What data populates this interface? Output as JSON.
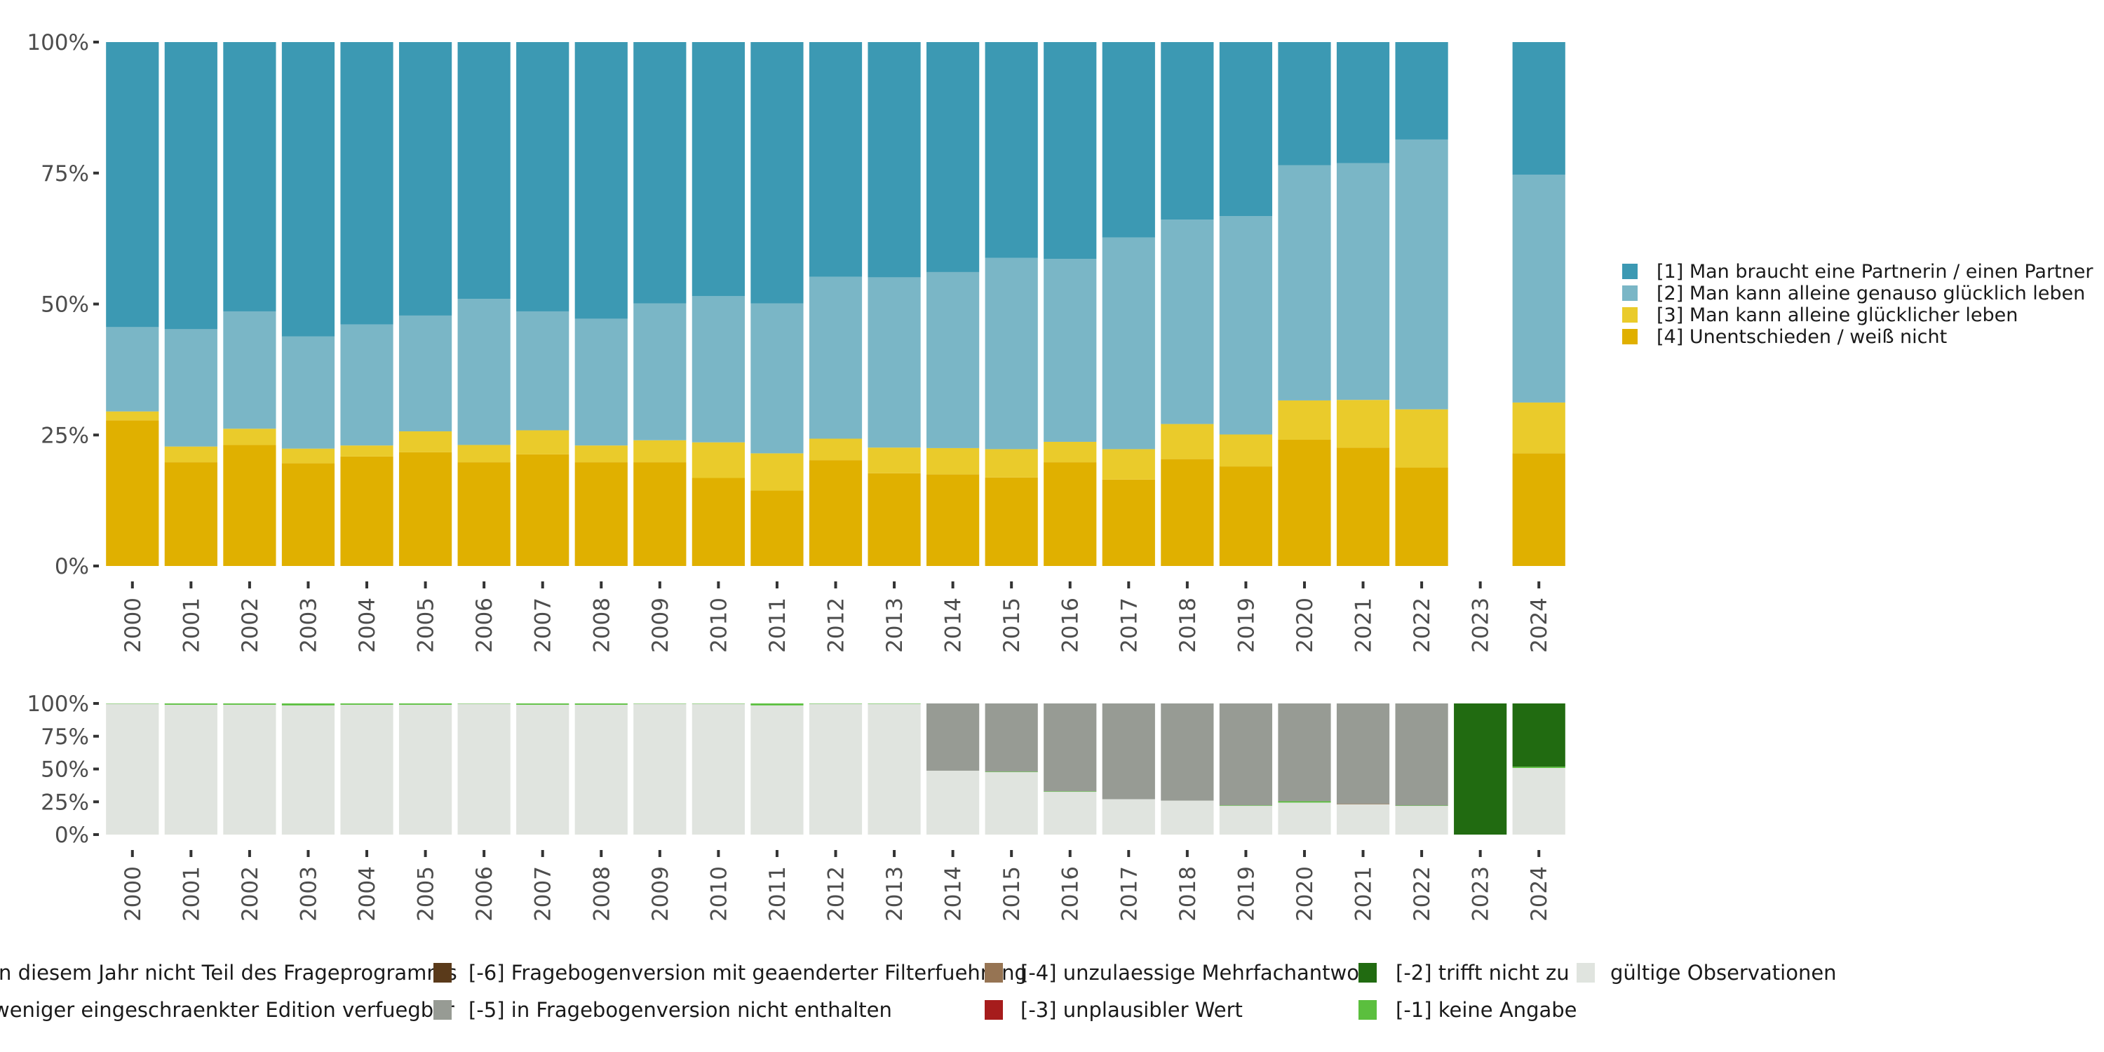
{
  "chart_data": [
    {
      "id": "main",
      "type": "bar",
      "stacked": true,
      "normalized": true,
      "title": "",
      "xlabel": "",
      "ylabel": "",
      "ylim": [
        0,
        100
      ],
      "yticks": [
        "0%",
        "25%",
        "50%",
        "75%",
        "100%"
      ],
      "grid": false,
      "legend_position": "right",
      "categories": [
        "2000",
        "2001",
        "2002",
        "2003",
        "2004",
        "2005",
        "2006",
        "2007",
        "2008",
        "2009",
        "2010",
        "2011",
        "2012",
        "2013",
        "2014",
        "2015",
        "2016",
        "2017",
        "2018",
        "2019",
        "2020",
        "2021",
        "2022",
        "2023",
        "2024"
      ],
      "series": [
        {
          "name": "[4] Unentschieden / weiß nicht",
          "color": "#E0B000",
          "values": [
            27.8,
            19.8,
            23.1,
            19.6,
            20.9,
            21.7,
            19.8,
            21.3,
            19.8,
            19.8,
            16.8,
            14.4,
            20.2,
            17.7,
            17.5,
            16.9,
            19.8,
            16.5,
            20.4,
            19.0,
            24.1,
            22.6,
            18.8,
            null,
            21.5
          ]
        },
        {
          "name": "[3] Man kann alleine glücklicher leben",
          "color": "#EACB2B",
          "values": [
            1.7,
            3.0,
            3.1,
            2.8,
            2.1,
            4.0,
            3.3,
            4.6,
            3.2,
            4.2,
            6.8,
            7.1,
            4.1,
            4.9,
            5.0,
            5.4,
            3.9,
            5.8,
            6.7,
            6.1,
            7.5,
            9.1,
            11.1,
            null,
            9.7
          ]
        },
        {
          "name": "[2] Man kann alleine genauso glücklich leben",
          "color": "#7AB6C6",
          "values": [
            16.1,
            22.4,
            22.4,
            21.4,
            23.1,
            22.1,
            27.9,
            22.7,
            24.2,
            26.1,
            27.9,
            28.6,
            30.9,
            32.5,
            33.6,
            36.5,
            34.9,
            40.4,
            39.0,
            41.7,
            44.9,
            45.2,
            51.5,
            null,
            43.5
          ]
        },
        {
          "name": "[1] Man braucht eine Partnerin / einen Partner",
          "color": "#3C99B3",
          "values": [
            54.4,
            54.8,
            51.4,
            56.2,
            53.9,
            52.2,
            49.0,
            51.4,
            52.8,
            49.9,
            48.5,
            49.9,
            44.8,
            44.9,
            43.9,
            41.2,
            41.4,
            37.3,
            33.9,
            33.2,
            23.5,
            23.1,
            18.6,
            null,
            25.3
          ]
        }
      ],
      "legend": [
        {
          "label": "[1] Man braucht eine Partnerin / einen Partner",
          "color": "#3C99B3"
        },
        {
          "label": "[2] Man kann alleine genauso glücklich leben",
          "color": "#7AB6C6"
        },
        {
          "label": "[3] Man kann alleine glücklicher leben",
          "color": "#EACB2B"
        },
        {
          "label": "[4] Unentschieden / weiß nicht",
          "color": "#E0B000"
        }
      ]
    },
    {
      "id": "missings",
      "type": "bar",
      "stacked": true,
      "normalized": true,
      "title": "",
      "xlabel": "",
      "ylabel": "",
      "ylim": [
        0,
        100
      ],
      "yticks": [
        "0%",
        "25%",
        "50%",
        "75%",
        "100%"
      ],
      "grid": false,
      "legend_position": "bottom",
      "categories": [
        "2000",
        "2001",
        "2002",
        "2003",
        "2004",
        "2005",
        "2006",
        "2007",
        "2008",
        "2009",
        "2010",
        "2011",
        "2012",
        "2013",
        "2014",
        "2015",
        "2016",
        "2017",
        "2018",
        "2019",
        "2020",
        "2021",
        "2022",
        "2023",
        "2024"
      ],
      "series": [
        {
          "name": "gültige Observationen",
          "color": "#E0E4DF",
          "values": [
            99.8,
            99.0,
            99.0,
            98.5,
            99.0,
            99.0,
            99.8,
            99.0,
            99.0,
            99.8,
            99.8,
            98.5,
            99.7,
            99.7,
            48.7,
            47.6,
            32.6,
            27.0,
            25.9,
            21.9,
            24.4,
            23.0,
            21.9,
            0,
            50.8
          ]
        },
        {
          "name": "[-4] unzulaessige Mehrfachantwort",
          "color": "#967453",
          "values": [
            0,
            0,
            0,
            0,
            0,
            0,
            0,
            0,
            0,
            0,
            0,
            0,
            0,
            0,
            0,
            0,
            0,
            0,
            0,
            0,
            0,
            0.4,
            0,
            0,
            0
          ]
        },
        {
          "name": "[-1] keine Angabe",
          "color": "#5BBF3E",
          "values": [
            0.2,
            1.0,
            1.0,
            1.5,
            1.0,
            1.0,
            0.2,
            1.0,
            1.0,
            0.2,
            0.2,
            1.5,
            0.3,
            0.3,
            0,
            0.4,
            0.4,
            0,
            0,
            0.4,
            1.0,
            0,
            0.3,
            0,
            1.0
          ]
        },
        {
          "name": "[-5] in Fragebogenversion nicht enthalten",
          "color": "#979B94",
          "values": [
            0,
            0,
            0,
            0,
            0,
            0,
            0,
            0,
            0,
            0,
            0,
            0,
            0,
            0,
            51.3,
            52.0,
            67.0,
            73.0,
            74.1,
            77.7,
            74.6,
            76.6,
            77.8,
            0,
            0
          ]
        },
        {
          "name": "[-2] trifft nicht zu",
          "color": "#216B11",
          "values": [
            0,
            0,
            0,
            0,
            0,
            0,
            0,
            0,
            0,
            0,
            0,
            0,
            0,
            0,
            0,
            0,
            0,
            0,
            0,
            0,
            0,
            0,
            0,
            100,
            48.2
          ]
        }
      ],
      "legend": [
        {
          "label": "in diesem Jahr nicht Teil des Frageprogramms",
          "color": null
        },
        {
          "label": "[-6] Fragebogenversion mit geaenderter Filterfuehrung",
          "color": "#5A3A1A"
        },
        {
          "label": "[-4] unzulaessige Mehrfachantwort",
          "color": "#967453"
        },
        {
          "label": "[-2] trifft nicht zu",
          "color": "#216B11"
        },
        {
          "label": "gültige Observationen",
          "color": "#E0E4DF"
        },
        {
          "label": "weniger eingeschraenkter Edition verfuegbar",
          "color": null
        },
        {
          "label": "[-5] in Fragebogenversion nicht enthalten",
          "color": "#979B94"
        },
        {
          "label": "[-3] unplausibler Wert",
          "color": "#A61C1C"
        },
        {
          "label": "[-1] keine Angabe",
          "color": "#5BBF3E"
        }
      ]
    }
  ]
}
